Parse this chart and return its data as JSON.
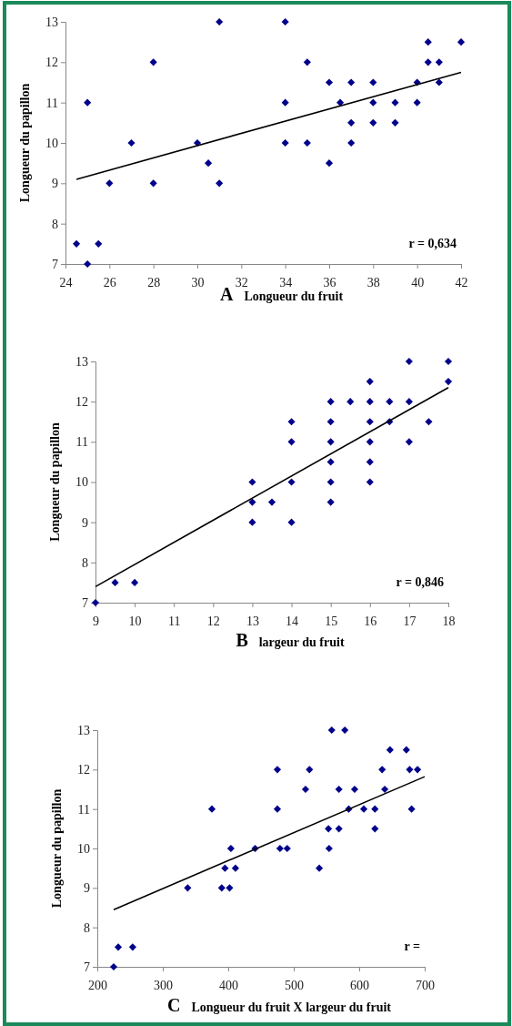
{
  "chart_data": [
    {
      "type": "scatter",
      "xlabel": "Longueur du fruit",
      "ylabel": "Longueur du papillon",
      "annotations": [
        "A",
        "r = 0,634"
      ],
      "xlim": [
        24,
        42
      ],
      "xticks": [
        24,
        26,
        28,
        30,
        32,
        34,
        36,
        38,
        40,
        42
      ],
      "ylim": [
        7,
        13
      ],
      "yticks": [
        7,
        8,
        9,
        10,
        11,
        12,
        13
      ],
      "series": [
        {
          "marker": "diamond",
          "color": "#00008b",
          "x": [
            24.5,
            25,
            25.5,
            25,
            26,
            27,
            28,
            28,
            30,
            30.5,
            31,
            31,
            34,
            34,
            34,
            35,
            35,
            36,
            36,
            36.5,
            37,
            37,
            37,
            38,
            38,
            38,
            39,
            39,
            40,
            40,
            40.5,
            40.5,
            41,
            41,
            42
          ],
          "values": [
            7.5,
            7,
            7.5,
            11,
            9,
            10,
            12,
            9,
            10,
            9.5,
            13,
            9,
            13,
            11,
            10,
            12,
            10,
            11.5,
            9.5,
            11,
            11.5,
            10.5,
            10,
            11.5,
            11,
            10.5,
            11,
            10.5,
            11.5,
            11,
            12.5,
            12,
            12,
            11.5,
            12.5
          ]
        },
        {
          "type": "line",
          "marker": "none",
          "color": "#000000",
          "x": [
            24.5,
            42
          ],
          "values": [
            9.1,
            11.75
          ]
        }
      ]
    },
    {
      "type": "scatter",
      "xlabel": "largeur du fruit",
      "ylabel": "Longueur du papillon",
      "annotations": [
        "B",
        "r = 0,846"
      ],
      "xlim": [
        9,
        18
      ],
      "xticks": [
        9,
        10,
        11,
        12,
        13,
        14,
        15,
        16,
        17,
        18
      ],
      "ylim": [
        7,
        13
      ],
      "yticks": [
        7,
        8,
        9,
        10,
        11,
        12,
        13
      ],
      "series": [
        {
          "marker": "diamond",
          "color": "#00008b",
          "x": [
            9,
            9.5,
            10,
            13,
            13,
            13,
            13.5,
            14,
            14,
            14,
            14,
            15,
            15,
            15,
            15,
            15,
            15,
            15.5,
            16,
            16,
            16,
            16,
            16,
            16,
            16.5,
            16.5,
            17,
            17,
            17,
            17.5,
            18,
            18
          ],
          "values": [
            7,
            7.5,
            7.5,
            10,
            9.5,
            9,
            9.5,
            11.5,
            11,
            10,
            9,
            12,
            11.5,
            11,
            10.5,
            10,
            9.5,
            12,
            12.5,
            12,
            11.5,
            11,
            10.5,
            10,
            12,
            11.5,
            13,
            12,
            11,
            11.5,
            13,
            12.5
          ]
        },
        {
          "type": "line",
          "marker": "none",
          "color": "#000000",
          "x": [
            9,
            18
          ],
          "values": [
            7.4,
            12.35
          ]
        }
      ]
    },
    {
      "type": "scatter",
      "xlabel": "Longueur du fruit X largeur du fruit",
      "ylabel": "Longueur du papillon",
      "annotations": [
        "C",
        "r ="
      ],
      "xlim": [
        200,
        700
      ],
      "xticks": [
        200,
        300,
        400,
        500,
        600,
        700
      ],
      "ylim": [
        7,
        13
      ],
      "yticks": [
        7,
        8,
        9,
        10,
        11,
        12,
        13
      ],
      "series": [
        {
          "marker": "diamond",
          "color": "#00008b",
          "x": [
            225,
            232,
            254,
            338,
            375,
            390,
            402,
            395,
            411,
            404,
            441,
            475,
            475,
            479,
            490,
            518,
            524,
            539,
            553,
            554,
            558,
            569,
            569,
            578,
            584,
            593,
            607,
            624,
            624,
            635,
            639,
            647,
            672,
            677,
            680,
            689
          ],
          "values": [
            7,
            7.5,
            7.5,
            9,
            11,
            9,
            9,
            9.5,
            9.5,
            10,
            10,
            12,
            11,
            10,
            10,
            11.5,
            12,
            9.5,
            10.5,
            10,
            13,
            11.5,
            10.5,
            13,
            11,
            11.5,
            11,
            11,
            10.5,
            12,
            11.5,
            12.5,
            12.5,
            12,
            11,
            12
          ]
        },
        {
          "type": "line",
          "marker": "none",
          "color": "#000000",
          "x": [
            225,
            700
          ],
          "values": [
            8.45,
            11.82
          ]
        }
      ]
    }
  ]
}
